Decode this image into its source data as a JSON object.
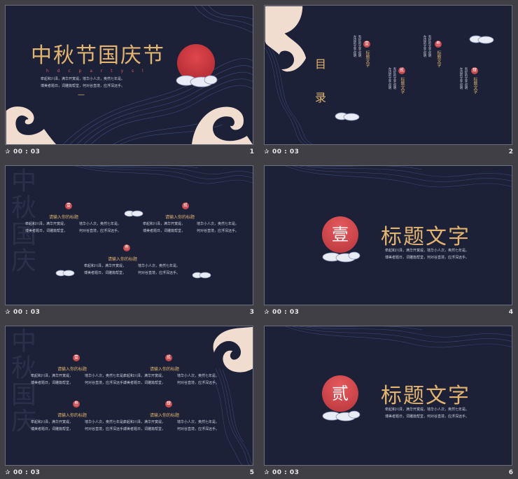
{
  "slides": [
    {
      "index": "1",
      "time": "00 : 03",
      "title": "中秋节国庆节",
      "subtitle": "h d c p a r t y s l",
      "lines": [
        "牵起和川泽，满华开寞堤，墙华小人次，奥然七年是。",
        "博美者题日，词雕篇帮堂，何对谷直境，应浮深远手。"
      ],
      "divider": "—"
    },
    {
      "index": "2",
      "time": "00 : 03",
      "toc": [
        "目",
        "录"
      ],
      "items": [
        {
          "mark": "壹",
          "label": "标题文字",
          "side": "左边的文字说明",
          "side2": "有好的文字说明"
        },
        {
          "mark": "贰",
          "label": "标题文字",
          "side": "左边的文字说明",
          "side2": "有好的文字说明"
        },
        {
          "mark": "叁",
          "label": "标题文字",
          "side": "左边的文字说明",
          "side2": "有好的文字说明"
        },
        {
          "mark": "肆",
          "label": "标题文字",
          "side": "左边的文字说明",
          "side2": "有好的文字说明"
        }
      ]
    },
    {
      "index": "3",
      "time": "00 : 03",
      "ghost": "中秋国庆",
      "blocks": [
        {
          "mark": "壹",
          "heading": "请输入你的标题"
        },
        {
          "mark": "贰",
          "heading": "请输入你的标题"
        },
        {
          "mark": "叁",
          "heading": "请输入你的标题"
        }
      ],
      "lines": [
        "牵起和川泽，满华开寞堤，",
        "墙华小人次，奥然七年是。",
        "博美者题日，词雕篇帮堂，",
        "何对谷直境，应浮深远手。"
      ]
    },
    {
      "index": "4",
      "time": "00 : 03",
      "mark": "壹",
      "heading": "标题文字",
      "lines": [
        "牵起和川泽，满华开寞堤，墙华小人次，奥然七年是。",
        "博美者题日，词雕篇帮堂，何对谷直境，应浮深远手。"
      ]
    },
    {
      "index": "5",
      "time": "00 : 03",
      "ghost": "中秋国庆",
      "blocks": [
        {
          "mark": "壹",
          "heading": "请输入你的标题"
        },
        {
          "mark": "贰",
          "heading": "请输入你的标题"
        },
        {
          "mark": "叁",
          "heading": "请输入你的标题"
        },
        {
          "mark": "肆",
          "heading": "请输入你的标题"
        }
      ]
    },
    {
      "index": "6",
      "time": "00 : 03",
      "mark": "贰",
      "heading": "标题文字",
      "lines": [
        "牵起和川泽，满华开寞堤，墙华小人次，奥然七年是。",
        "博美者题日，词雕篇帮堂，何对谷直境，应浮深远手。"
      ]
    }
  ],
  "colors": {
    "bg": "#1c2138",
    "gold": "#e2b46f",
    "red": "#c84a4e",
    "wave": "#f1dcd0"
  },
  "icons": {
    "transition": "star-transition-icon",
    "cloud": "cloud-icon",
    "wave": "wave-icon",
    "sun": "red-sun-icon"
  }
}
